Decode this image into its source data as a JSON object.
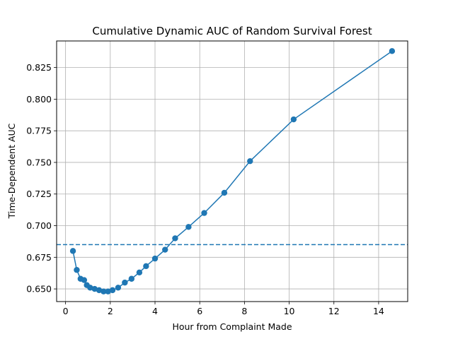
{
  "chart_data": {
    "type": "line",
    "title": "Cumulative Dynamic AUC of Random Survival Forest",
    "xlabel": "Hour from Complaint Made",
    "ylabel": "Time-Dependent AUC",
    "xlim": [
      -0.4,
      15.3
    ],
    "ylim": [
      0.64,
      0.846
    ],
    "xticks": [
      0,
      2,
      4,
      6,
      8,
      10,
      12,
      14
    ],
    "xtick_labels": [
      "0",
      "2",
      "4",
      "6",
      "8",
      "10",
      "12",
      "14"
    ],
    "yticks": [
      0.65,
      0.675,
      0.7,
      0.725,
      0.75,
      0.775,
      0.8,
      0.825
    ],
    "ytick_labels": [
      "0.650",
      "0.675",
      "0.700",
      "0.725",
      "0.750",
      "0.775",
      "0.800",
      "0.825"
    ],
    "grid": true,
    "series": [
      {
        "color": "#1f77b4",
        "marker": "circle",
        "x": [
          0.33,
          0.5,
          0.67,
          0.83,
          0.95,
          1.1,
          1.3,
          1.5,
          1.7,
          1.9,
          2.1,
          2.35,
          2.65,
          2.95,
          3.3,
          3.6,
          4.0,
          4.45,
          4.9,
          5.5,
          6.2,
          7.1,
          8.25,
          10.2,
          14.6
        ],
        "y": [
          0.68,
          0.665,
          0.658,
          0.657,
          0.653,
          0.651,
          0.65,
          0.649,
          0.648,
          0.648,
          0.649,
          0.651,
          0.655,
          0.658,
          0.663,
          0.668,
          0.674,
          0.681,
          0.69,
          0.699,
          0.71,
          0.726,
          0.751,
          0.784,
          0.838
        ]
      }
    ],
    "reference_line": {
      "y": 0.685,
      "style": "dashed",
      "color": "#1f77b4"
    }
  }
}
